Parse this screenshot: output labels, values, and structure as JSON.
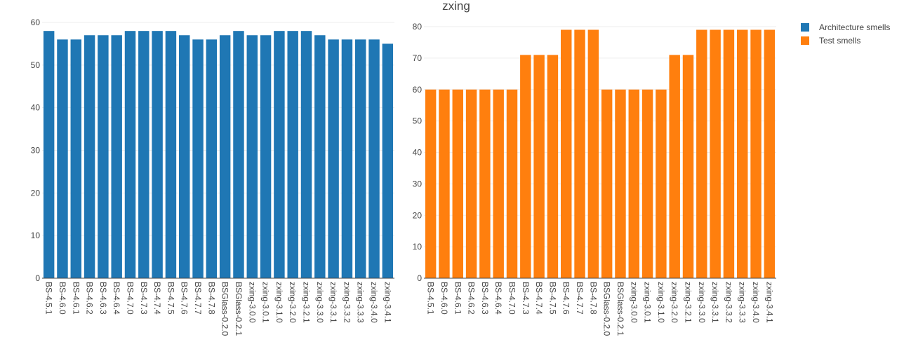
{
  "chart_data": [
    {
      "type": "bar",
      "title": "",
      "xlabel": "",
      "ylabel": "",
      "ylim": [
        0,
        60
      ],
      "yticks": [
        0,
        10,
        20,
        30,
        40,
        50,
        60
      ],
      "grid": true,
      "color": "#1f77b4",
      "categories": [
        "BS-4.5.1",
        "BS-4.6.0",
        "BS-4.6.1",
        "BS-4.6.2",
        "BS-4.6.3",
        "BS-4.6.4",
        "BS-4.7.0",
        "BS-4.7.3",
        "BS-4.7.4",
        "BS-4.7.5",
        "BS-4.7.6",
        "BS-4.7.7",
        "BS-4.7.8",
        "BSGlass-0.2.0",
        "BSGlass-0.2.1",
        "zxing-3.0.0",
        "zxing-3.0.1",
        "zxing-3.1.0",
        "zxing-3.2.0",
        "zxing-3.2.1",
        "zxing-3.3.0",
        "zxing-3.3.1",
        "zxing-3.3.2",
        "zxing-3.3.3",
        "zxing-3.4.0",
        "zxing-3.4.1"
      ],
      "series": [
        {
          "name": "Architecture smells",
          "values": [
            58,
            56,
            56,
            57,
            57,
            57,
            58,
            58,
            58,
            58,
            57,
            56,
            56,
            57,
            58,
            57,
            57,
            58,
            58,
            58,
            57,
            56,
            56,
            56,
            56,
            55
          ]
        }
      ]
    },
    {
      "type": "bar",
      "title": "zxing",
      "xlabel": "",
      "ylabel": "",
      "ylim": [
        0,
        80
      ],
      "yticks": [
        0,
        10,
        20,
        30,
        40,
        50,
        60,
        70,
        80
      ],
      "grid": true,
      "color": "#ff7f0e",
      "categories": [
        "BS-4.5.1",
        "BS-4.6.0",
        "BS-4.6.1",
        "BS-4.6.2",
        "BS-4.6.3",
        "BS-4.6.4",
        "BS-4.7.0",
        "BS-4.7.3",
        "BS-4.7.4",
        "BS-4.7.5",
        "BS-4.7.6",
        "BS-4.7.7",
        "BS-4.7.8",
        "BSGlass-0.2.0",
        "BSGlass-0.2.1",
        "zxing-3.0.0",
        "zxing-3.0.1",
        "zxing-3.1.0",
        "zxing-3.2.0",
        "zxing-3.2.1",
        "zxing-3.3.0",
        "zxing-3.3.1",
        "zxing-3.3.2",
        "zxing-3.3.3",
        "zxing-3.4.0",
        "zxing-3.4.1"
      ],
      "series": [
        {
          "name": "Test smells",
          "values": [
            60,
            60,
            60,
            60,
            60,
            60,
            60,
            71,
            71,
            71,
            79,
            79,
            79,
            60,
            60,
            60,
            60,
            60,
            71,
            71,
            79,
            79,
            79,
            79,
            79,
            79
          ]
        }
      ]
    }
  ],
  "legend": {
    "position": "top-right",
    "items": [
      {
        "label": "Architecture smells",
        "color": "#1f77b4"
      },
      {
        "label": "Test smells",
        "color": "#ff7f0e"
      }
    ]
  }
}
